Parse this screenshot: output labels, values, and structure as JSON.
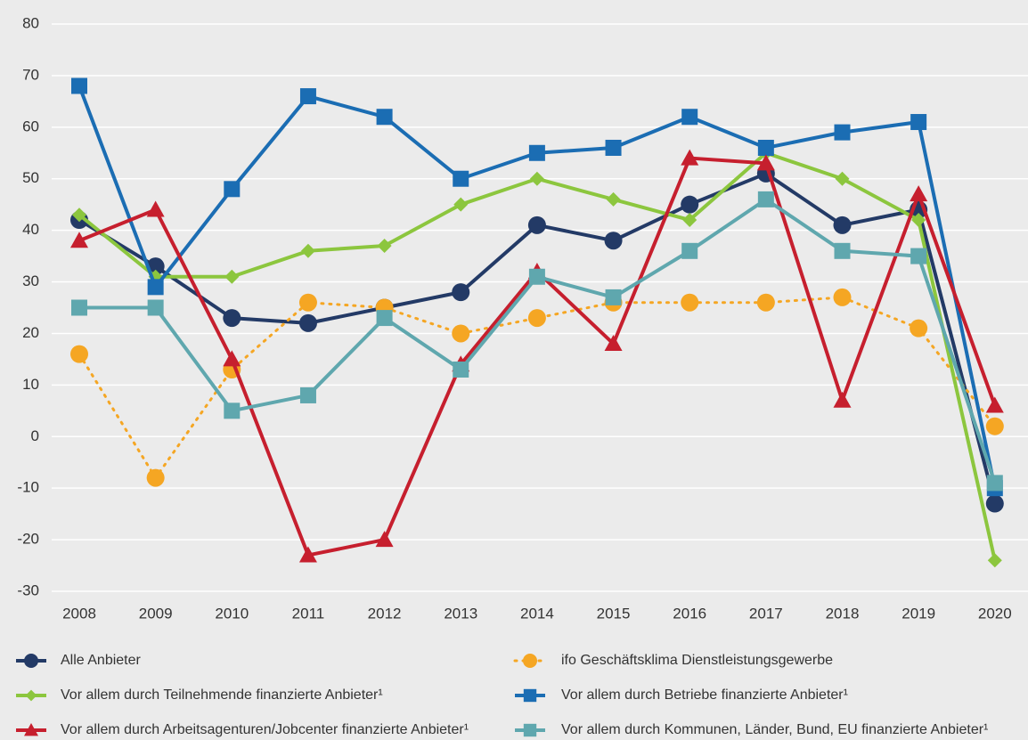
{
  "chart_data": {
    "type": "line",
    "categories": [
      "2008",
      "2009",
      "2010",
      "2011",
      "2012",
      "2013",
      "2014",
      "2015",
      "2016",
      "2017",
      "2018",
      "2019",
      "2020"
    ],
    "series": [
      {
        "name": "Alle Anbieter",
        "color": "#233a66",
        "marker": "circle",
        "line_style": "solid",
        "values": [
          42,
          33,
          23,
          22,
          25,
          28,
          41,
          38,
          45,
          51,
          41,
          44,
          -13
        ]
      },
      {
        "name": "ifo Geschäftsklima Dienstleistungsgewerbe",
        "color": "#f5a623",
        "marker": "circle",
        "line_style": "dotted",
        "values": [
          16,
          -8,
          13,
          26,
          25,
          20,
          23,
          26,
          26,
          26,
          27,
          21,
          2
        ]
      },
      {
        "name": "Vor allem durch Teilnehmende finanzierte Anbieter¹",
        "color": "#8cc63e",
        "marker": "diamond",
        "line_style": "solid",
        "values": [
          43,
          31,
          31,
          36,
          37,
          45,
          50,
          46,
          42,
          55,
          50,
          42,
          -24
        ]
      },
      {
        "name": "Vor allem durch Betriebe finanzierte Anbieter¹",
        "color": "#1b6db3",
        "marker": "square",
        "line_style": "solid",
        "values": [
          68,
          29,
          48,
          66,
          62,
          50,
          55,
          56,
          62,
          56,
          59,
          61,
          -10
        ]
      },
      {
        "name": "Vor allem durch Arbeitsagenturen/Jobcenter finanzierte Anbieter¹",
        "color": "#c61f2e",
        "marker": "triangle",
        "line_style": "solid",
        "values": [
          38,
          44,
          15,
          -23,
          -20,
          14,
          32,
          18,
          54,
          53,
          7,
          47,
          6
        ]
      },
      {
        "name": "Vor allem durch Kommunen, Länder, Bund, EU finanzierte Anbieter¹",
        "color": "#5fa7ae",
        "marker": "square",
        "line_style": "solid",
        "values": [
          25,
          25,
          5,
          8,
          23,
          13,
          31,
          27,
          36,
          46,
          36,
          35,
          -9
        ]
      }
    ],
    "ylim": [
      -30,
      80
    ],
    "yticks": [
      -30,
      -20,
      -10,
      0,
      10,
      20,
      30,
      40,
      50,
      60,
      70,
      80
    ],
    "grid": true
  }
}
